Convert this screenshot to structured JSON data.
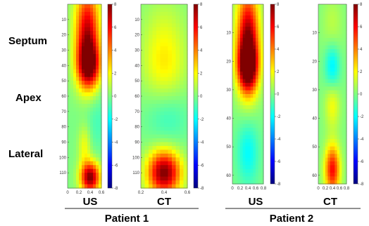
{
  "figure": {
    "row_labels": [
      "Septum",
      "Apex",
      "Lateral"
    ],
    "group_labels": [
      "Patient 1",
      "Patient 2"
    ],
    "colorbar": {
      "min": -8,
      "max": 8,
      "ticks": [
        8,
        6,
        4,
        2,
        0,
        -2,
        -4,
        -6,
        -8
      ]
    }
  },
  "chart_data": [
    {
      "type": "heatmap",
      "patient": "Patient 1",
      "modality": "US",
      "xticks": [
        "0",
        "0.2",
        "0.4",
        "0.6"
      ],
      "yticks": [
        10,
        20,
        30,
        40,
        50,
        60,
        70,
        80,
        90,
        100,
        110
      ],
      "ylim": [
        0,
        120
      ],
      "xlim": [
        0,
        0.6
      ],
      "hotspots": [
        {
          "x": 0.35,
          "y": 20,
          "value": 7,
          "sx": 0.15,
          "sy": 22
        },
        {
          "x": 0.38,
          "y": 40,
          "value": 6,
          "sx": 0.14,
          "sy": 10
        },
        {
          "x": 0.4,
          "y": 113,
          "value": 8,
          "sx": 0.12,
          "sy": 7
        },
        {
          "x": 0.3,
          "y": 92,
          "value": 2,
          "sx": 0.08,
          "sy": 10
        },
        {
          "x": 0.5,
          "y": 75,
          "value": -1,
          "sx": 0.2,
          "sy": 15
        }
      ]
    },
    {
      "type": "heatmap",
      "patient": "Patient 1",
      "modality": "CT",
      "xticks": [
        "0.2",
        "0.4",
        "0.6"
      ],
      "yticks": [
        10,
        20,
        30,
        40,
        50,
        60,
        70,
        80,
        90,
        100,
        110
      ],
      "ylim": [
        0,
        120
      ],
      "xlim": [
        0,
        0.6
      ],
      "hotspots": [
        {
          "x": 0.3,
          "y": 110,
          "value": 8,
          "sx": 0.15,
          "sy": 10
        },
        {
          "x": 0.3,
          "y": 40,
          "value": 2,
          "sx": 0.2,
          "sy": 15
        },
        {
          "x": 0.3,
          "y": 15,
          "value": 1,
          "sx": 0.2,
          "sy": 15
        },
        {
          "x": 0.35,
          "y": 75,
          "value": -1,
          "sx": 0.2,
          "sy": 12
        }
      ]
    },
    {
      "type": "heatmap",
      "patient": "Patient 2",
      "modality": "US",
      "xticks": [
        "0",
        "0.2",
        "0.4",
        "0.6",
        "0.8"
      ],
      "yticks": [
        10,
        20,
        30,
        40,
        50,
        60
      ],
      "ylim": [
        0,
        63
      ],
      "xlim": [
        0,
        0.8
      ],
      "hotspots": [
        {
          "x": 0.4,
          "y": 12,
          "value": 7.5,
          "sx": 0.2,
          "sy": 12
        },
        {
          "x": 0.4,
          "y": 22,
          "value": 7,
          "sx": 0.18,
          "sy": 6
        },
        {
          "x": 0.4,
          "y": 52,
          "value": -2,
          "sx": 0.2,
          "sy": 8
        }
      ]
    },
    {
      "type": "heatmap",
      "patient": "Patient 2",
      "modality": "CT",
      "xticks": [
        "0",
        "0.2",
        "0.4",
        "0.6",
        "0.8"
      ],
      "yticks": [
        10,
        20,
        30,
        40,
        50,
        60
      ],
      "ylim": [
        0,
        63
      ],
      "xlim": [
        0,
        0.8
      ],
      "hotspots": [
        {
          "x": 0.4,
          "y": 58,
          "value": 6,
          "sx": 0.15,
          "sy": 6
        },
        {
          "x": 0.4,
          "y": 22,
          "value": -2.5,
          "sx": 0.15,
          "sy": 6
        },
        {
          "x": 0.4,
          "y": 35,
          "value": 2,
          "sx": 0.15,
          "sy": 6
        },
        {
          "x": 0.4,
          "y": 8,
          "value": 1,
          "sx": 0.2,
          "sy": 8
        }
      ]
    }
  ]
}
